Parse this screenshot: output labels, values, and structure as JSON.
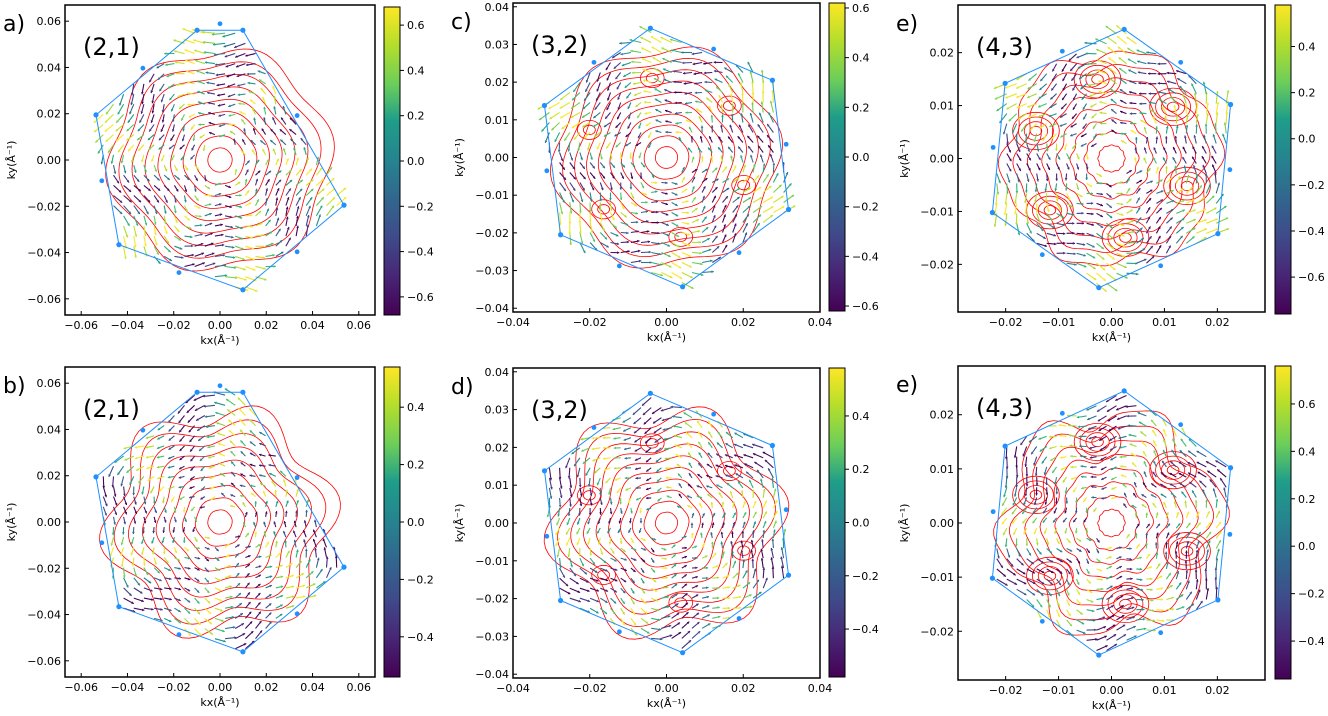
{
  "chart_data": [
    {
      "panel_letter": "a)",
      "tag": "(2,1)",
      "type": "vector-field",
      "xlabel": "kx(Å⁻¹)",
      "ylabel": "ky(Å⁻¹)",
      "xlim": [
        -0.067,
        0.067
      ],
      "ylim": [
        -0.067,
        0.067
      ],
      "xticks": [
        -0.06,
        -0.04,
        -0.02,
        0.0,
        0.02,
        0.04,
        0.06
      ],
      "yticks": [
        -0.06,
        -0.04,
        -0.02,
        0.0,
        0.02,
        0.04,
        0.06
      ],
      "x_tick_labels": [
        "−0.06",
        "−0.04",
        "−0.02",
        "0.00",
        "0.02",
        "0.04",
        "0.06"
      ],
      "y_tick_labels": [
        "−0.06",
        "−0.04",
        "−0.02",
        "0.00",
        "0.02",
        "0.04",
        "0.06"
      ],
      "hexagon_radius": 0.057,
      "hexagon_rotation_deg": 10,
      "hexagon_points": [
        [
          0.0099,
          0.0561
        ],
        [
          0.0536,
          -0.0195
        ],
        [
          0.0099,
          -0.0561
        ],
        [
          -0.0437,
          -0.0366
        ],
        [
          -0.0536,
          0.0195
        ],
        [
          -0.0099,
          0.0561
        ]
      ],
      "colorbar": {
        "min": -0.68,
        "max": 0.68,
        "ticks": [
          -0.6,
          -0.4,
          -0.2,
          0.0,
          0.2,
          0.4,
          0.6
        ],
        "tick_labels": [
          "−0.6",
          "−0.4",
          "−0.2",
          "0.0",
          "0.2",
          "0.4",
          "0.6"
        ]
      },
      "contour_color": "#ff0000",
      "hexagon_color": "#1e90ff"
    },
    {
      "panel_letter": "c)",
      "tag": "(3,2)",
      "type": "vector-field",
      "xlabel": "kx(Å⁻¹)",
      "ylabel": "ky(Å⁻¹)",
      "xlim": [
        -0.04,
        0.04
      ],
      "ylim": [
        -0.041,
        0.041
      ],
      "xticks": [
        -0.04,
        -0.02,
        0.0,
        0.02,
        0.04
      ],
      "yticks": [
        -0.04,
        -0.03,
        -0.02,
        -0.01,
        0.0,
        0.01,
        0.02,
        0.03,
        0.04
      ],
      "x_tick_labels": [
        "−0.04",
        "−0.02",
        "0.00",
        "0.02",
        "0.04"
      ],
      "y_tick_labels": [
        "−0.04",
        "−0.03",
        "−0.02",
        "−0.01",
        "0.00",
        "0.01",
        "0.02",
        "0.03",
        "0.04"
      ],
      "hexagon_radius": 0.0345,
      "hexagon_rotation_deg": 10,
      "hexagon_points": [
        [
          -0.0042,
          0.0343
        ],
        [
          0.0276,
          0.0205
        ],
        [
          0.0318,
          -0.0138
        ],
        [
          0.0042,
          -0.0343
        ],
        [
          -0.0276,
          -0.0205
        ],
        [
          -0.0318,
          0.0138
        ]
      ],
      "colorbar": {
        "min": -0.62,
        "max": 0.62,
        "ticks": [
          -0.6,
          -0.4,
          -0.2,
          0.0,
          0.2,
          0.4,
          0.6
        ],
        "tick_labels": [
          "−0.6",
          "−0.4",
          "−0.2",
          "0.0",
          "0.2",
          "0.4",
          "0.6"
        ]
      },
      "contour_color": "#ff0000",
      "hexagon_color": "#1e90ff"
    },
    {
      "panel_letter": "e)",
      "tag": "(4,3)",
      "type": "vector-field",
      "xlabel": "kx(Å⁻¹)",
      "ylabel": "ky(Å⁻¹)",
      "xlim": [
        -0.029,
        0.029
      ],
      "ylim": [
        -0.029,
        0.029
      ],
      "xticks": [
        -0.02,
        -0.01,
        0.0,
        0.01,
        0.02
      ],
      "yticks": [
        -0.02,
        -0.01,
        0.0,
        0.01,
        0.02
      ],
      "x_tick_labels": [
        "−0.02",
        "−0.01",
        "0.00",
        "0.01",
        "0.02"
      ],
      "y_tick_labels": [
        "−0.02",
        "−0.01",
        "0.00",
        "0.01",
        "0.02"
      ],
      "hexagon_radius": 0.0245,
      "hexagon_rotation_deg": 10,
      "hexagon_points": [
        [
          0.0024,
          0.0244
        ],
        [
          0.0225,
          0.0102
        ],
        [
          0.0201,
          -0.0142
        ],
        [
          -0.0024,
          -0.0244
        ],
        [
          -0.0225,
          -0.0102
        ],
        [
          -0.0201,
          0.0142
        ]
      ],
      "colorbar": {
        "min": -0.76,
        "max": 0.58,
        "ticks": [
          -0.6,
          -0.4,
          -0.2,
          0.0,
          0.2,
          0.4
        ],
        "tick_labels": [
          "−0.6",
          "−0.4",
          "−0.2",
          "0.0",
          "0.2",
          "0.4"
        ]
      },
      "contour_color": "#ff0000",
      "hexagon_color": "#1e90ff"
    },
    {
      "panel_letter": "b)",
      "tag": "(2,1)",
      "type": "vector-field",
      "xlabel": "kx(Å⁻¹)",
      "ylabel": "ky(Å⁻¹)",
      "xlim": [
        -0.067,
        0.067
      ],
      "ylim": [
        -0.067,
        0.067
      ],
      "xticks": [
        -0.06,
        -0.04,
        -0.02,
        0.0,
        0.02,
        0.04,
        0.06
      ],
      "yticks": [
        -0.06,
        -0.04,
        -0.02,
        0.0,
        0.02,
        0.04,
        0.06
      ],
      "x_tick_labels": [
        "−0.06",
        "−0.04",
        "−0.02",
        "0.00",
        "0.02",
        "0.04",
        "0.06"
      ],
      "y_tick_labels": [
        "−0.06",
        "−0.04",
        "−0.02",
        "0.00",
        "0.02",
        "0.04",
        "0.06"
      ],
      "hexagon_radius": 0.057,
      "hexagon_rotation_deg": 10,
      "hexagon_points": [
        [
          0.0099,
          0.0561
        ],
        [
          0.0536,
          -0.0195
        ],
        [
          0.0099,
          -0.0561
        ],
        [
          -0.0437,
          -0.0366
        ],
        [
          -0.0536,
          0.0195
        ],
        [
          -0.0099,
          0.0561
        ]
      ],
      "colorbar": {
        "min": -0.54,
        "max": 0.54,
        "ticks": [
          -0.4,
          -0.2,
          0.0,
          0.2,
          0.4
        ],
        "tick_labels": [
          "−0.4",
          "−0.2",
          "0.0",
          "0.2",
          "0.4"
        ]
      },
      "contour_color": "#ff0000",
      "hexagon_color": "#1e90ff"
    },
    {
      "panel_letter": "d)",
      "tag": "(3,2)",
      "type": "vector-field",
      "xlabel": "kx(Å⁻¹)",
      "ylabel": "ky(Å⁻¹)",
      "xlim": [
        -0.04,
        0.04
      ],
      "ylim": [
        -0.041,
        0.041
      ],
      "xticks": [
        -0.04,
        -0.02,
        0.0,
        0.02,
        0.04
      ],
      "yticks": [
        -0.04,
        -0.03,
        -0.02,
        -0.01,
        0.0,
        0.01,
        0.02,
        0.03,
        0.04
      ],
      "x_tick_labels": [
        "−0.04",
        "−0.02",
        "0.00",
        "0.02",
        "0.04"
      ],
      "y_tick_labels": [
        "−0.04",
        "−0.03",
        "−0.02",
        "−0.01",
        "0.00",
        "0.01",
        "0.02",
        "0.03",
        "0.04"
      ],
      "hexagon_radius": 0.0345,
      "hexagon_rotation_deg": 10,
      "hexagon_points": [
        [
          -0.0042,
          0.0343
        ],
        [
          0.0276,
          0.0205
        ],
        [
          0.0318,
          -0.0138
        ],
        [
          0.0042,
          -0.0343
        ],
        [
          -0.0276,
          -0.0205
        ],
        [
          -0.0318,
          0.0138
        ]
      ],
      "colorbar": {
        "min": -0.58,
        "max": 0.58,
        "ticks": [
          -0.4,
          -0.2,
          0.0,
          0.2,
          0.4
        ],
        "tick_labels": [
          "−0.4",
          "−0.2",
          "0.0",
          "0.2",
          "0.4"
        ]
      },
      "contour_color": "#ff0000",
      "hexagon_color": "#1e90ff"
    },
    {
      "panel_letter": "e)",
      "tag": "(4,3)",
      "type": "vector-field",
      "xlabel": "kx(Å⁻¹)",
      "ylabel": "ky(Å⁻¹)",
      "xlim": [
        -0.029,
        0.029
      ],
      "ylim": [
        -0.029,
        0.029
      ],
      "xticks": [
        -0.02,
        -0.01,
        0.0,
        0.01,
        0.02
      ],
      "yticks": [
        -0.02,
        -0.01,
        0.0,
        0.01,
        0.02
      ],
      "x_tick_labels": [
        "−0.02",
        "−0.01",
        "0.00",
        "0.01",
        "0.02"
      ],
      "y_tick_labels": [
        "−0.02",
        "−0.01",
        "0.00",
        "0.01",
        "0.02"
      ],
      "hexagon_radius": 0.0245,
      "hexagon_rotation_deg": 10,
      "hexagon_points": [
        [
          0.0024,
          0.0244
        ],
        [
          0.0225,
          0.0102
        ],
        [
          0.0201,
          -0.0142
        ],
        [
          -0.0024,
          -0.0244
        ],
        [
          -0.0225,
          -0.0102
        ],
        [
          -0.0201,
          0.0142
        ]
      ],
      "colorbar": {
        "min": -0.56,
        "max": 0.76,
        "ticks": [
          -0.4,
          -0.2,
          0.0,
          0.2,
          0.4,
          0.6
        ],
        "tick_labels": [
          "−0.4",
          "−0.2",
          "0.0",
          "0.2",
          "0.4",
          "0.6"
        ]
      },
      "contour_color": "#ff0000",
      "hexagon_color": "#1e90ff"
    }
  ]
}
